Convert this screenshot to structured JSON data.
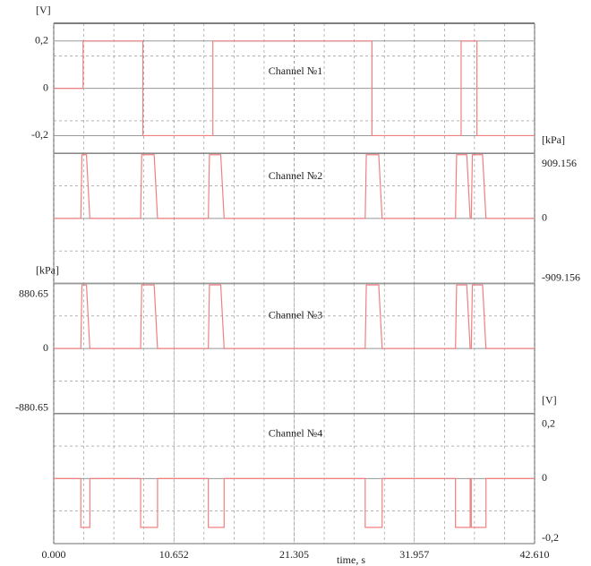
{
  "chart_data": [
    {
      "type": "line",
      "title": "Channel №1",
      "y_label": "[V]",
      "axis_side": "left",
      "xlim": [
        0,
        42.61
      ],
      "ylim": [
        -0.275,
        0.275
      ],
      "yticks": [
        {
          "value": 0.2,
          "label": "0,2"
        },
        0,
        {
          "value": -0.2,
          "label": "-0,2"
        }
      ],
      "series": [
        {
          "color": "#f08080",
          "x": [
            0,
            2.6,
            2.6,
            7.9,
            7.9,
            14.1,
            14.1,
            28.2,
            28.2,
            36.1,
            36.1,
            37.5,
            37.5,
            42.61
          ],
          "values": [
            0,
            0,
            0.2,
            0.2,
            -0.2,
            -0.2,
            0.2,
            0.2,
            -0.2,
            -0.2,
            0.2,
            0.2,
            -0.2,
            -0.2
          ]
        }
      ]
    },
    {
      "type": "line",
      "title": "Channel №2",
      "y_label": "[kPa]",
      "axis_side": "right",
      "xlim": [
        0,
        42.61
      ],
      "ylim": [
        -909.156,
        909.156
      ],
      "yticks": [
        909.156,
        0,
        -909.156
      ],
      "series": [
        {
          "color": "#f08080",
          "x": [
            0,
            2.4,
            2.5,
            2.9,
            3.2,
            7.7,
            7.8,
            8.9,
            9.2,
            13.7,
            13.8,
            14.8,
            15.1,
            27.6,
            27.7,
            28.8,
            29.1,
            35.6,
            35.7,
            36.6,
            36.9,
            37.0,
            37.1,
            38.0,
            38.3,
            42.61
          ],
          "values": [
            0,
            0,
            890,
            890,
            0,
            0,
            890,
            890,
            0,
            0,
            890,
            890,
            0,
            0,
            890,
            890,
            0,
            0,
            890,
            890,
            0,
            0,
            890,
            890,
            0,
            0
          ]
        }
      ]
    },
    {
      "type": "line",
      "title": "Channel №3",
      "y_label": "[kPa]",
      "axis_side": "left",
      "xlim": [
        0,
        42.61
      ],
      "ylim": [
        -880.65,
        880.65
      ],
      "yticks": [
        880.65,
        0,
        -880.65
      ],
      "series": [
        {
          "color": "#f08080",
          "x": [
            0,
            2.4,
            2.5,
            2.9,
            3.2,
            7.7,
            7.8,
            8.9,
            9.2,
            13.7,
            13.8,
            14.8,
            15.1,
            27.6,
            27.7,
            28.8,
            29.1,
            35.6,
            35.7,
            36.6,
            36.9,
            37.0,
            37.1,
            38.0,
            38.3,
            42.61
          ],
          "values": [
            0,
            0,
            860,
            860,
            0,
            0,
            860,
            860,
            0,
            0,
            860,
            860,
            0,
            0,
            860,
            860,
            0,
            0,
            860,
            860,
            0,
            0,
            860,
            860,
            0,
            0
          ]
        }
      ]
    },
    {
      "type": "line",
      "title": "Channel №4",
      "y_label": "[V]",
      "axis_side": "right",
      "x_label": "time, s",
      "xlim": [
        0,
        42.61
      ],
      "ylim": [
        -0.2,
        0.2
      ],
      "xticks": [
        {
          "value": 0,
          "label": "0.000"
        },
        10.652,
        21.305,
        31.957,
        {
          "value": 42.61,
          "label": "42.610"
        }
      ],
      "yticks": [
        {
          "value": 0.2,
          "label": "0,2"
        },
        0,
        {
          "value": -0.2,
          "label": "-0,2"
        }
      ],
      "series": [
        {
          "color": "#f08080",
          "x": [
            0,
            2.4,
            2.4,
            3.2,
            3.2,
            7.7,
            7.7,
            9.2,
            9.2,
            13.7,
            13.7,
            15.1,
            15.1,
            27.6,
            27.6,
            29.1,
            29.1,
            35.6,
            35.6,
            36.9,
            36.9,
            37.0,
            37.0,
            38.3,
            38.3,
            42.61
          ],
          "values": [
            0,
            0,
            -0.15,
            -0.15,
            0,
            0,
            -0.15,
            -0.15,
            0,
            0,
            -0.15,
            -0.15,
            0,
            0,
            -0.15,
            -0.15,
            0,
            0,
            -0.15,
            -0.15,
            0,
            0,
            -0.15,
            -0.15,
            0,
            0
          ]
        }
      ]
    }
  ]
}
